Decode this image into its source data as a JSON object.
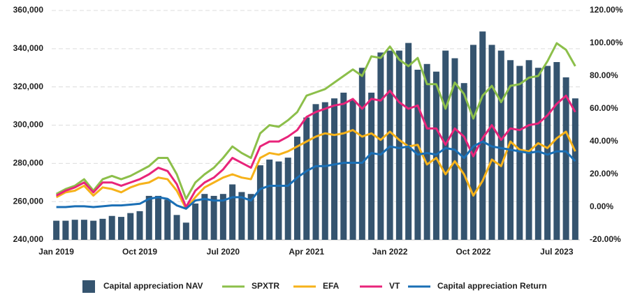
{
  "chart_data": {
    "type": "bar-line",
    "categories": [
      "Jan 2019",
      null,
      null,
      null,
      null,
      null,
      null,
      null,
      null,
      "Oct 2019",
      null,
      null,
      null,
      null,
      null,
      null,
      null,
      null,
      "Jul 2020",
      null,
      null,
      null,
      null,
      null,
      null,
      null,
      null,
      "Apr 2021",
      null,
      null,
      null,
      null,
      null,
      null,
      null,
      null,
      "Jan 2022",
      null,
      null,
      null,
      null,
      null,
      null,
      null,
      null,
      "Oct 2022",
      null,
      null,
      null,
      null,
      null,
      null,
      null,
      null,
      "Jul 2023",
      null,
      null
    ],
    "series": [
      {
        "name": "Capital appreciation NAV",
        "type": "bar",
        "axis": "y",
        "color": "#35546f",
        "values": [
          250000,
          250000,
          250500,
          250500,
          250000,
          251000,
          252500,
          252000,
          254000,
          255000,
          263000,
          263000,
          261000,
          253000,
          249000,
          259000,
          264000,
          263000,
          264000,
          269000,
          265000,
          264000,
          279000,
          282000,
          281000,
          283000,
          294000,
          304000,
          311000,
          312000,
          314000,
          317000,
          313000,
          330000,
          317000,
          338000,
          339000,
          339000,
          343000,
          329000,
          332000,
          328000,
          339000,
          335000,
          322000,
          342000,
          349000,
          342000,
          339000,
          334000,
          331000,
          334000,
          330000,
          331000,
          333000,
          325000,
          314000
        ]
      },
      {
        "name": "SPXTR",
        "type": "line",
        "axis": "y2",
        "color": "#8cbf4a",
        "values": [
          8,
          11,
          13,
          17,
          10,
          17,
          19,
          17,
          19,
          22,
          25,
          30,
          30,
          20,
          5,
          15,
          20,
          24,
          30,
          37,
          33,
          30,
          45,
          50,
          49,
          53,
          58,
          68,
          70,
          72,
          76,
          80,
          84,
          80,
          92,
          91,
          98,
          90,
          86,
          91,
          75,
          75,
          60,
          76,
          69,
          54,
          68,
          74,
          64,
          74,
          75,
          79,
          80,
          89,
          100,
          96,
          86
        ]
      },
      {
        "name": "EFA",
        "type": "line",
        "axis": "y2",
        "color": "#f6b21a",
        "values": [
          6,
          9,
          10,
          13,
          7,
          12,
          11,
          9,
          12,
          14,
          15,
          18,
          17,
          10,
          -1,
          6,
          12,
          15,
          18,
          20,
          18,
          17,
          30,
          33,
          32,
          34,
          37,
          40,
          43,
          45,
          44,
          45,
          47,
          43,
          45,
          41,
          46,
          41,
          37,
          38,
          26,
          30,
          20,
          28,
          20,
          7,
          16,
          29,
          25,
          40,
          35,
          34,
          39,
          36,
          42,
          46,
          34
        ]
      },
      {
        "name": "VT",
        "type": "line",
        "axis": "y2",
        "color": "#e8247a",
        "values": [
          7,
          10,
          12,
          15,
          9,
          15,
          15,
          13,
          15,
          17,
          20,
          24,
          22,
          14,
          0,
          10,
          15,
          18,
          23,
          30,
          27,
          24,
          37,
          40,
          40,
          43,
          47,
          55,
          58,
          60,
          62,
          63,
          66,
          60,
          66,
          65,
          71,
          64,
          60,
          62,
          48,
          48,
          38,
          48,
          43,
          31,
          42,
          50,
          41,
          48,
          47,
          50,
          51,
          56,
          63,
          68,
          58
        ]
      },
      {
        "name": "Capital appreciation Return",
        "type": "line",
        "axis": "y2",
        "color": "#1a6fb5",
        "values": [
          0,
          0,
          0.5,
          0.5,
          0,
          0.5,
          1,
          1,
          1.5,
          2,
          5,
          6,
          5,
          1,
          -1,
          4,
          5,
          4,
          4,
          6,
          6,
          4,
          11,
          13,
          13,
          13,
          18,
          22,
          25,
          25,
          26,
          27,
          27,
          27,
          33,
          32,
          37,
          36,
          37,
          32,
          33,
          32,
          36,
          35,
          30,
          37,
          40,
          37,
          36,
          35,
          34,
          33,
          34,
          32,
          34,
          34,
          28
        ]
      }
    ],
    "ylim": [
      240000,
      360000
    ],
    "yticks": [
      {
        "value": 240000,
        "label": "240,000"
      },
      {
        "value": 260000,
        "label": "260,000"
      },
      {
        "value": 280000,
        "label": "280,000"
      },
      {
        "value": 300000,
        "label": "300,000"
      },
      {
        "value": 320000,
        "label": "320,000"
      },
      {
        "value": 340000,
        "label": "340,000"
      },
      {
        "value": 360000,
        "label": "360,000"
      }
    ],
    "y2lim": [
      -20,
      120
    ],
    "y2ticks": [
      {
        "value": -20,
        "label": "-20.00%"
      },
      {
        "value": 0,
        "label": "0.00%"
      },
      {
        "value": 20,
        "label": "20.00%"
      },
      {
        "value": 40,
        "label": "40.00%"
      },
      {
        "value": 60,
        "label": "60.00%"
      },
      {
        "value": 80,
        "label": "80.00%"
      },
      {
        "value": 100,
        "label": "100.00%"
      },
      {
        "value": 120,
        "label": "120.00%"
      }
    ],
    "grid": true,
    "legend": "bottom"
  }
}
